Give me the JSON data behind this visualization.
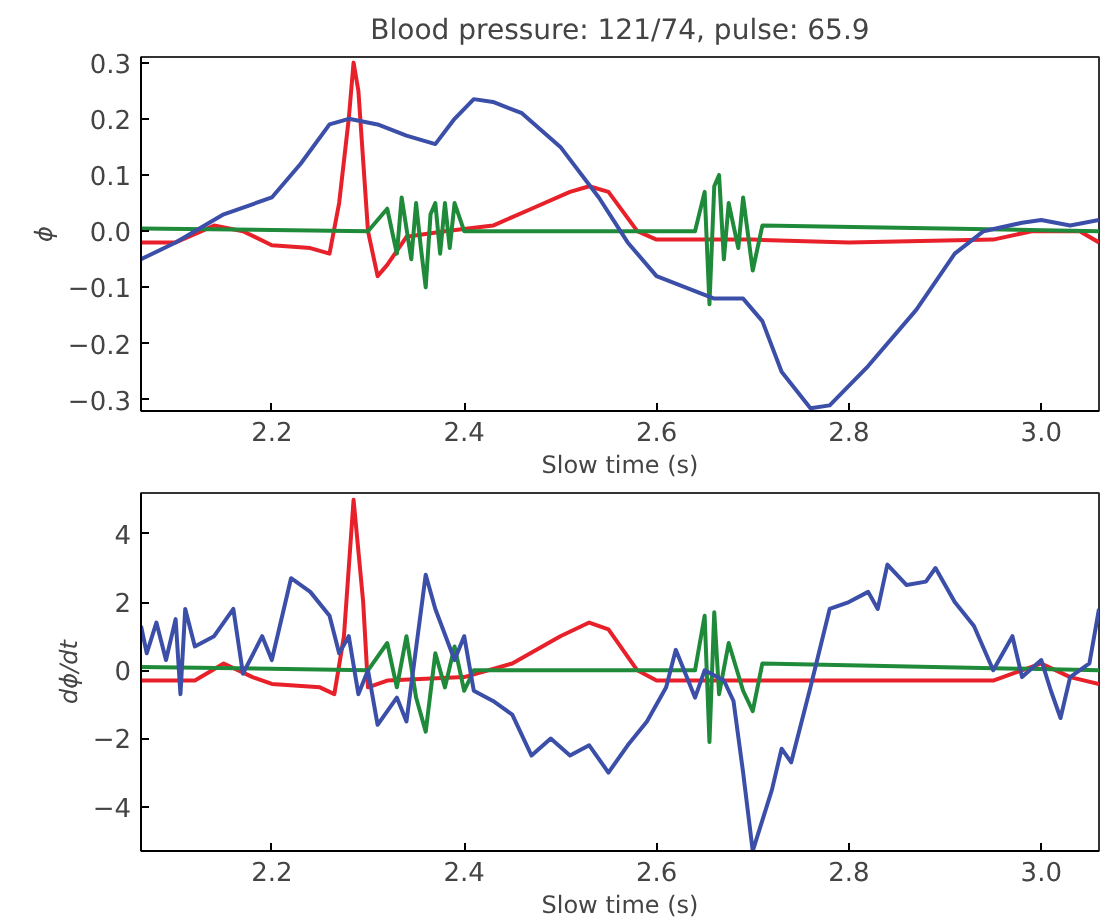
{
  "chart_data": [
    {
      "type": "line",
      "title": "Blood pressure: 121/74, pulse: 65.9",
      "xlabel": "Slow time (s)",
      "ylabel": "ϕ",
      "xlim": [
        2.064,
        3.06
      ],
      "ylim": [
        -0.32,
        0.31
      ],
      "xticks": [
        2.2,
        2.4,
        2.6,
        2.8,
        {
          "value": 3,
          "label": "3.0"
        }
      ],
      "yticks": [
        {
          "value": -0.3,
          "label": "−0.3"
        },
        {
          "value": -0.2,
          "label": "−0.2"
        },
        {
          "value": -0.1,
          "label": "−0.1"
        },
        {
          "value": 0,
          "label": "0.0"
        },
        0.1,
        0.2,
        0.3
      ],
      "series": [
        {
          "color": "#e8202a",
          "x": [
            2.064,
            2.1,
            2.14,
            2.17,
            2.2,
            2.24,
            2.26,
            2.27,
            2.28,
            2.285,
            2.29,
            2.3,
            2.31,
            2.32,
            2.34,
            2.38,
            2.43,
            2.47,
            2.51,
            2.53,
            2.55,
            2.58,
            2.6,
            2.7,
            2.8,
            2.95,
            2.99,
            3.02,
            3.04,
            3.06
          ],
          "values": [
            -0.02,
            -0.02,
            0.01,
            0.0,
            -0.025,
            -0.03,
            -0.04,
            0.05,
            0.2,
            0.3,
            0.25,
            0.0,
            -0.08,
            -0.06,
            -0.01,
            0.0,
            0.01,
            0.04,
            0.07,
            0.08,
            0.07,
            0.0,
            -0.015,
            -0.015,
            -0.02,
            -0.015,
            0.0,
            0.0,
            0.0,
            -0.02
          ]
        },
        {
          "color": "#1f8a3a",
          "x": [
            2.064,
            2.3,
            2.32,
            2.33,
            2.335,
            2.345,
            2.35,
            2.355,
            2.36,
            2.365,
            2.37,
            2.375,
            2.38,
            2.385,
            2.39,
            2.4,
            2.64,
            2.65,
            2.655,
            2.66,
            2.665,
            2.67,
            2.675,
            2.685,
            2.69,
            2.7,
            2.71,
            3.06
          ],
          "values": [
            0.005,
            0.0,
            0.04,
            -0.04,
            0.06,
            -0.05,
            0.05,
            -0.03,
            -0.1,
            0.03,
            0.05,
            -0.04,
            0.05,
            -0.03,
            0.05,
            0.0,
            0.0,
            0.07,
            -0.13,
            0.08,
            0.1,
            -0.05,
            0.05,
            -0.03,
            0.06,
            -0.07,
            0.01,
            0.0
          ]
        },
        {
          "color": "#3b4fa8",
          "x": [
            2.064,
            2.1,
            2.15,
            2.2,
            2.23,
            2.26,
            2.28,
            2.31,
            2.34,
            2.37,
            2.39,
            2.41,
            2.43,
            2.46,
            2.5,
            2.54,
            2.57,
            2.6,
            2.63,
            2.66,
            2.69,
            2.71,
            2.73,
            2.76,
            2.78,
            2.82,
            2.87,
            2.91,
            2.94,
            2.98,
            3.0,
            3.03,
            3.06
          ],
          "values": [
            -0.05,
            -0.02,
            0.03,
            0.06,
            0.12,
            0.19,
            0.2,
            0.19,
            0.17,
            0.155,
            0.2,
            0.235,
            0.23,
            0.21,
            0.15,
            0.06,
            -0.02,
            -0.08,
            -0.1,
            -0.12,
            -0.12,
            -0.16,
            -0.25,
            -0.315,
            -0.31,
            -0.24,
            -0.14,
            -0.04,
            0.0,
            0.015,
            0.02,
            0.01,
            0.02
          ]
        }
      ]
    },
    {
      "type": "line",
      "xlabel": "Slow time (s)",
      "ylabel": "dϕ/dt",
      "xlim": [
        2.064,
        3.06
      ],
      "ylim": [
        -5.3,
        5.2
      ],
      "xticks": [
        2.2,
        2.4,
        2.6,
        2.8,
        {
          "value": 3,
          "label": "3.0"
        }
      ],
      "yticks": [
        {
          "value": -4,
          "label": "−4"
        },
        {
          "value": -2,
          "label": "−2"
        },
        0,
        2,
        4
      ],
      "series": [
        {
          "color": "#e8202a",
          "x": [
            2.064,
            2.12,
            2.15,
            2.18,
            2.2,
            2.25,
            2.265,
            2.275,
            2.285,
            2.295,
            2.3,
            2.32,
            2.4,
            2.45,
            2.5,
            2.53,
            2.55,
            2.58,
            2.6,
            2.8,
            2.95,
            2.98,
            3.0,
            3.03,
            3.06
          ],
          "values": [
            -0.3,
            -0.3,
            0.2,
            -0.2,
            -0.4,
            -0.5,
            -0.7,
            1.0,
            5.0,
            2.0,
            -0.5,
            -0.3,
            -0.2,
            0.2,
            1.0,
            1.4,
            1.2,
            0.0,
            -0.3,
            -0.3,
            -0.3,
            0.0,
            0.2,
            -0.2,
            -0.4
          ]
        },
        {
          "color": "#1f8a3a",
          "x": [
            2.064,
            2.3,
            2.32,
            2.33,
            2.34,
            2.35,
            2.36,
            2.37,
            2.38,
            2.39,
            2.4,
            2.41,
            2.64,
            2.65,
            2.655,
            2.66,
            2.665,
            2.675,
            2.69,
            2.7,
            2.71,
            3.06
          ],
          "values": [
            0.1,
            0.0,
            0.8,
            -0.5,
            1.0,
            -0.8,
            -1.8,
            0.5,
            -0.5,
            0.7,
            -0.6,
            0.0,
            0.0,
            1.6,
            -2.1,
            1.7,
            -0.7,
            0.8,
            -0.6,
            -1.2,
            0.2,
            0.0
          ]
        },
        {
          "color": "#3b4fa8",
          "x": [
            2.064,
            2.07,
            2.08,
            2.09,
            2.1,
            2.105,
            2.11,
            2.12,
            2.14,
            2.16,
            2.17,
            2.19,
            2.2,
            2.22,
            2.24,
            2.26,
            2.27,
            2.28,
            2.29,
            2.3,
            2.31,
            2.33,
            2.34,
            2.36,
            2.37,
            2.39,
            2.4,
            2.41,
            2.43,
            2.45,
            2.47,
            2.49,
            2.51,
            2.53,
            2.55,
            2.57,
            2.59,
            2.61,
            2.62,
            2.64,
            2.65,
            2.67,
            2.68,
            2.69,
            2.7,
            2.72,
            2.73,
            2.74,
            2.76,
            2.78,
            2.8,
            2.82,
            2.83,
            2.84,
            2.86,
            2.88,
            2.89,
            2.91,
            2.93,
            2.95,
            2.97,
            2.98,
            3.0,
            3.01,
            3.02,
            3.03,
            3.05,
            3.06
          ],
          "values": [
            1.3,
            0.5,
            1.4,
            0.3,
            1.5,
            -0.7,
            1.8,
            0.7,
            1.0,
            1.8,
            -0.1,
            1.0,
            0.3,
            2.7,
            2.3,
            1.6,
            0.5,
            1.0,
            -0.7,
            0.0,
            -1.6,
            -0.8,
            -1.5,
            2.8,
            1.8,
            0.3,
            1.0,
            -0.6,
            -0.9,
            -1.3,
            -2.5,
            -2.0,
            -2.5,
            -2.2,
            -3.0,
            -2.2,
            -1.5,
            -0.5,
            0.6,
            -0.8,
            0.0,
            -0.3,
            -0.9,
            -3.0,
            -5.3,
            -3.5,
            -2.3,
            -2.7,
            -0.5,
            1.8,
            2.0,
            2.3,
            1.8,
            3.1,
            2.5,
            2.6,
            3.0,
            2.0,
            1.3,
            0.0,
            1.0,
            -0.2,
            0.3,
            -0.6,
            -1.4,
            -0.2,
            0.2,
            1.8
          ]
        }
      ]
    }
  ]
}
